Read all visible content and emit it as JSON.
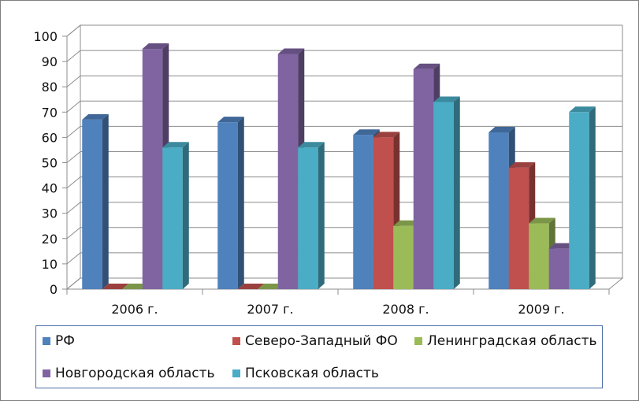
{
  "chart_data": {
    "type": "bar",
    "categories": [
      "2006 г.",
      "2007 г.",
      "2008 г.",
      "2009 г."
    ],
    "series": [
      {
        "name": "РФ",
        "color": "#4f81bd",
        "values": [
          67,
          66,
          61,
          62
        ]
      },
      {
        "name": "Северо-Западный ФО",
        "color": "#c0504d",
        "values": [
          0,
          0,
          60,
          48
        ]
      },
      {
        "name": "Ленинградская область",
        "color": "#9bbb59",
        "values": [
          0,
          0,
          25,
          26
        ]
      },
      {
        "name": "Новгородская область",
        "color": "#8064a2",
        "values": [
          95,
          93,
          87,
          16
        ]
      },
      {
        "name": "Псковская область",
        "color": "#4bacc6",
        "values": [
          56,
          56,
          74,
          70
        ]
      }
    ],
    "y_ticks": [
      "0",
      "10",
      "20",
      "30",
      "40",
      "50",
      "60",
      "70",
      "80",
      "90",
      "100"
    ],
    "ylim": [
      0,
      100
    ],
    "grid": true,
    "legend_position": "bottom",
    "title": "",
    "xlabel": "",
    "ylabel": ""
  }
}
